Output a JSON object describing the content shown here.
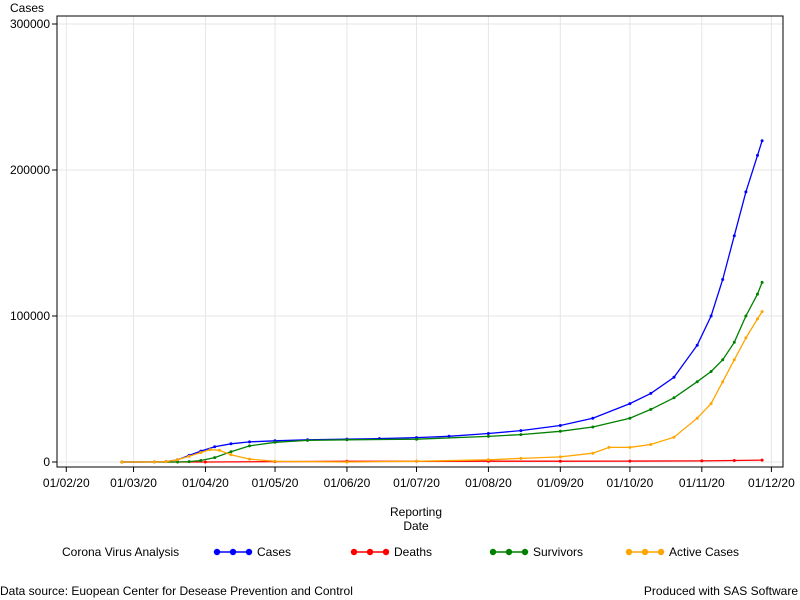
{
  "chart_data": {
    "type": "line",
    "title": "",
    "ylabel": "Cases",
    "xlabel_line1": "Reporting",
    "xlabel_line2": "Date",
    "ylim": [
      0,
      300000
    ],
    "xlim": [
      "2020-01-28",
      "2020-12-06"
    ],
    "yticks": [
      0,
      100000,
      200000,
      300000
    ],
    "ytick_labels": [
      "0",
      "100000",
      "200000",
      "300000"
    ],
    "xticks": [
      {
        "date": "2020-02-01",
        "label": "01/02/20"
      },
      {
        "date": "2020-03-01",
        "label": "01/03/20"
      },
      {
        "date": "2020-04-01",
        "label": "01/04/20"
      },
      {
        "date": "2020-05-01",
        "label": "01/05/20"
      },
      {
        "date": "2020-06-01",
        "label": "01/06/20"
      },
      {
        "date": "2020-07-01",
        "label": "01/07/20"
      },
      {
        "date": "2020-08-01",
        "label": "01/08/20"
      },
      {
        "date": "2020-09-01",
        "label": "01/09/20"
      },
      {
        "date": "2020-10-01",
        "label": "01/10/20"
      },
      {
        "date": "2020-11-01",
        "label": "01/11/20"
      },
      {
        "date": "2020-12-01",
        "label": "01/12/20"
      }
    ],
    "grid": true,
    "legend_position": "bottom",
    "series": [
      {
        "name": "Cases",
        "color": "#0000ff",
        "points": [
          [
            "2020-02-25",
            0
          ],
          [
            "2020-03-10",
            50
          ],
          [
            "2020-03-15",
            300
          ],
          [
            "2020-03-20",
            1500
          ],
          [
            "2020-03-25",
            4500
          ],
          [
            "2020-03-30",
            7500
          ],
          [
            "2020-04-05",
            10500
          ],
          [
            "2020-04-12",
            12500
          ],
          [
            "2020-04-20",
            13800
          ],
          [
            "2020-05-01",
            14500
          ],
          [
            "2020-05-15",
            15200
          ],
          [
            "2020-06-01",
            15700
          ],
          [
            "2020-06-15",
            16000
          ],
          [
            "2020-07-01",
            16700
          ],
          [
            "2020-07-15",
            17600
          ],
          [
            "2020-08-01",
            19500
          ],
          [
            "2020-08-15",
            21500
          ],
          [
            "2020-09-01",
            25000
          ],
          [
            "2020-09-15",
            30000
          ],
          [
            "2020-10-01",
            40000
          ],
          [
            "2020-10-10",
            47000
          ],
          [
            "2020-10-20",
            58000
          ],
          [
            "2020-10-30",
            80000
          ],
          [
            "2020-11-05",
            100000
          ],
          [
            "2020-11-10",
            125000
          ],
          [
            "2020-11-15",
            155000
          ],
          [
            "2020-11-20",
            185000
          ],
          [
            "2020-11-25",
            210000
          ],
          [
            "2020-11-27",
            220000
          ]
        ]
      },
      {
        "name": "Deaths",
        "color": "#ff0000",
        "points": [
          [
            "2020-02-25",
            0
          ],
          [
            "2020-04-01",
            0
          ],
          [
            "2020-05-01",
            300
          ],
          [
            "2020-06-01",
            450
          ],
          [
            "2020-07-01",
            500
          ],
          [
            "2020-08-01",
            520
          ],
          [
            "2020-09-01",
            550
          ],
          [
            "2020-10-01",
            620
          ],
          [
            "2020-11-01",
            750
          ],
          [
            "2020-11-15",
            1000
          ],
          [
            "2020-11-27",
            1300
          ]
        ]
      },
      {
        "name": "Survivors",
        "color": "#008000",
        "points": [
          [
            "2020-02-25",
            0
          ],
          [
            "2020-03-20",
            0
          ],
          [
            "2020-03-25",
            300
          ],
          [
            "2020-03-30",
            1000
          ],
          [
            "2020-04-05",
            3000
          ],
          [
            "2020-04-12",
            7000
          ],
          [
            "2020-04-20",
            11000
          ],
          [
            "2020-05-01",
            13500
          ],
          [
            "2020-05-15",
            14800
          ],
          [
            "2020-06-01",
            15200
          ],
          [
            "2020-07-01",
            15600
          ],
          [
            "2020-08-01",
            17500
          ],
          [
            "2020-08-15",
            18800
          ],
          [
            "2020-09-01",
            21000
          ],
          [
            "2020-09-15",
            24000
          ],
          [
            "2020-10-01",
            30000
          ],
          [
            "2020-10-10",
            36000
          ],
          [
            "2020-10-20",
            44000
          ],
          [
            "2020-10-30",
            55000
          ],
          [
            "2020-11-05",
            62000
          ],
          [
            "2020-11-10",
            70000
          ],
          [
            "2020-11-15",
            82000
          ],
          [
            "2020-11-20",
            100000
          ],
          [
            "2020-11-25",
            115000
          ],
          [
            "2020-11-27",
            123000
          ]
        ]
      },
      {
        "name": "Active Cases",
        "color": "#ffa500",
        "points": [
          [
            "2020-02-25",
            0
          ],
          [
            "2020-03-10",
            50
          ],
          [
            "2020-03-15",
            300
          ],
          [
            "2020-03-20",
            1500
          ],
          [
            "2020-03-25",
            4000
          ],
          [
            "2020-03-30",
            6500
          ],
          [
            "2020-04-03",
            8500
          ],
          [
            "2020-04-07",
            8000
          ],
          [
            "2020-04-12",
            5000
          ],
          [
            "2020-04-20",
            2000
          ],
          [
            "2020-05-01",
            500
          ],
          [
            "2020-06-01",
            0
          ],
          [
            "2020-07-01",
            500
          ],
          [
            "2020-08-01",
            1500
          ],
          [
            "2020-08-15",
            2500
          ],
          [
            "2020-09-01",
            3500
          ],
          [
            "2020-09-15",
            6000
          ],
          [
            "2020-09-22",
            10000
          ],
          [
            "2020-10-01",
            10000
          ],
          [
            "2020-10-10",
            12000
          ],
          [
            "2020-10-20",
            17000
          ],
          [
            "2020-10-30",
            30000
          ],
          [
            "2020-11-05",
            40000
          ],
          [
            "2020-11-10",
            55000
          ],
          [
            "2020-11-15",
            70000
          ],
          [
            "2020-11-20",
            85000
          ],
          [
            "2020-11-25",
            98000
          ],
          [
            "2020-11-27",
            103000
          ]
        ]
      }
    ]
  },
  "legend": {
    "title": "Corona Virus Analysis",
    "items": [
      "Cases",
      "Deaths",
      "Survivors",
      "Active Cases"
    ]
  },
  "footer": {
    "left": "Data source: Euopean Center for Desease Prevention and Control",
    "right": "Produced with SAS Software"
  }
}
